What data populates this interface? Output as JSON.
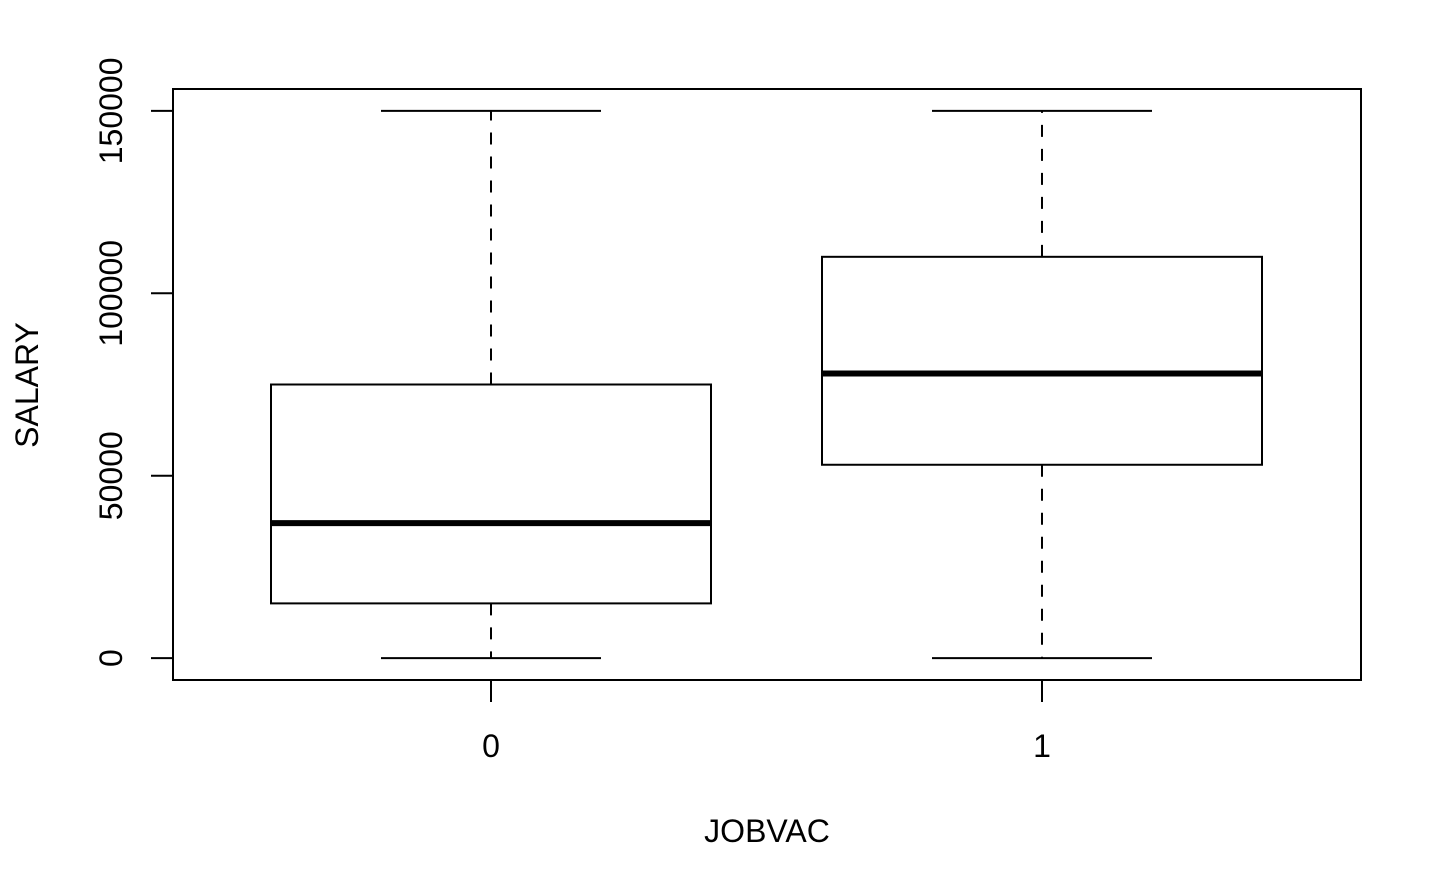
{
  "chart_data": {
    "type": "boxplot",
    "title": "",
    "xlabel": "JOBVAC",
    "ylabel": "SALARY",
    "categories": [
      "0",
      "1"
    ],
    "boxes": [
      {
        "category": "0",
        "min": 0,
        "q1": 15000,
        "median": 37000,
        "q3": 75000,
        "max": 150000
      },
      {
        "category": "1",
        "min": 0,
        "q1": 53000,
        "median": 78000,
        "q3": 110000,
        "max": 150000
      }
    ],
    "yticks": [
      0,
      50000,
      100000,
      150000
    ],
    "ytick_labels": [
      "0",
      "50000",
      "100000",
      "150000"
    ],
    "ylim": [
      -6000,
      156000
    ],
    "grid": false,
    "legend": "none"
  }
}
